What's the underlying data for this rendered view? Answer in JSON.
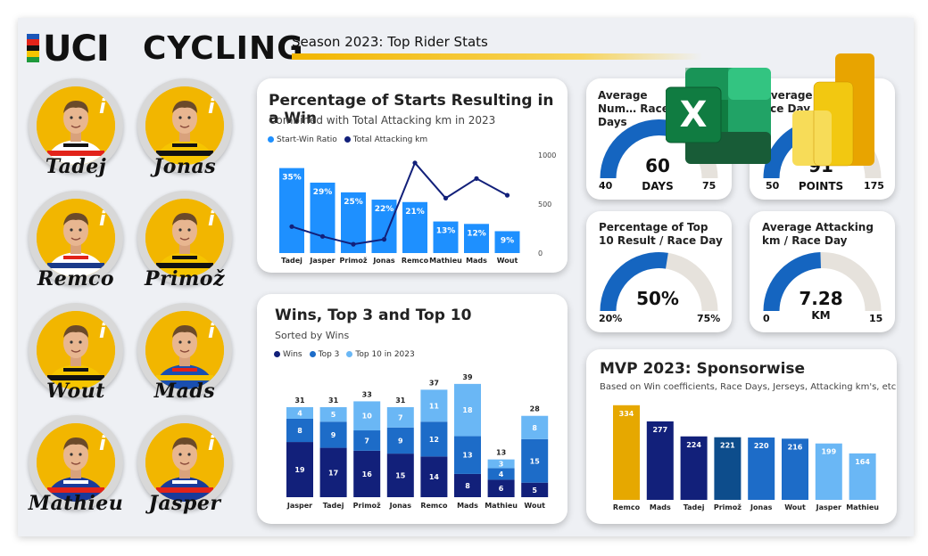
{
  "header": {
    "logo_uci": "UCI",
    "logo_cycling": "CYCLING",
    "season_title": "Season 2023: Top Rider Stats",
    "rainbow_colors": [
      "#1a56b8",
      "#e2231a",
      "#111111",
      "#f6c500",
      "#1f9a3c"
    ]
  },
  "riders": [
    {
      "name": "Tadej",
      "kit": "uae"
    },
    {
      "name": "Jonas",
      "kit": "jumbo"
    },
    {
      "name": "Remco",
      "kit": "soudal"
    },
    {
      "name": "Primož",
      "kit": "jumbo"
    },
    {
      "name": "Wout",
      "kit": "jumbo"
    },
    {
      "name": "Mads",
      "kit": "lidl"
    },
    {
      "name": "Mathieu",
      "kit": "alpecin"
    },
    {
      "name": "Jasper",
      "kit": "alpecin"
    }
  ],
  "card1": {
    "title": "Percentage of Starts Resulting in a Win",
    "subtitle": "Combined with Total Attacking km in 2023",
    "legend": [
      "Start-Win Ratio",
      "Total Attacking km"
    ]
  },
  "card2": {
    "title": "Wins, Top 3 and Top 10",
    "subtitle": "Sorted by Wins",
    "legend": [
      "Wins",
      "Top 3",
      "Top 10 in 2023"
    ]
  },
  "gauges": [
    {
      "title": "Average Number of Race Days",
      "title_visible": "Average Num… Race Days",
      "value": "60",
      "unit": "DAYS",
      "min": "40",
      "max": "75",
      "fill": 0.57
    },
    {
      "title": "Average Points / Race Day",
      "title_visible": "Average … ace Day",
      "value": "91",
      "unit": "POINTS",
      "min": "50",
      "max": "175",
      "fill": 0.33
    },
    {
      "title": "Percentage of Top 10 Result / Race Day",
      "value": "50%",
      "unit": "",
      "min": "20%",
      "max": "75%",
      "fill": 0.55
    },
    {
      "title": "Average Attacking km / Race Day",
      "value": "7.28",
      "unit": "KM",
      "min": "0",
      "max": "15",
      "fill": 0.49
    }
  ],
  "card_mvp": {
    "title": "MVP 2023: Sponsorwise",
    "subtitle": "Based on Win coefficients, Race Days, Jerseys, Attacking km's, etc"
  },
  "colors": {
    "primary_blue": "#1e90ff",
    "navy": "#12207a",
    "mid_blue": "#1d6cc8",
    "light_blue": "#6ab7f5",
    "gold": "#e6a800",
    "gauge_blue": "#1565c0",
    "gauge_track": "#e6e2dc"
  },
  "chart_data": [
    {
      "type": "bar",
      "title": "Percentage of Starts Resulting in a Win",
      "categories": [
        "Tadej",
        "Jasper",
        "Primož",
        "Jonas",
        "Remco",
        "Mathieu",
        "Mads",
        "Wout"
      ],
      "series": [
        {
          "name": "Start-Win Ratio",
          "type": "bar",
          "values": [
            35,
            29,
            25,
            22,
            21,
            13,
            12,
            9
          ],
          "labels": [
            "35%",
            "29%",
            "25%",
            "22%",
            "21%",
            "13%",
            "12%",
            "9%"
          ]
        },
        {
          "name": "Total Attacking km",
          "type": "line",
          "axis": "right",
          "values": [
            270,
            170,
            90,
            140,
            920,
            560,
            760,
            590
          ]
        }
      ],
      "y2_ticks": [
        "1000",
        "500",
        "0"
      ],
      "ylim": [
        0,
        40
      ],
      "y2lim": [
        0,
        1000
      ]
    },
    {
      "type": "bar",
      "stacked": true,
      "title": "Wins, Top 3 and Top 10",
      "categories": [
        "Jasper",
        "Tadej",
        "Primož",
        "Jonas",
        "Remco",
        "Mads",
        "Mathieu",
        "Wout"
      ],
      "series": [
        {
          "name": "Wins",
          "values": [
            19,
            17,
            16,
            15,
            14,
            8,
            6,
            5
          ]
        },
        {
          "name": "Top 3",
          "values": [
            8,
            9,
            7,
            9,
            12,
            13,
            4,
            15
          ]
        },
        {
          "name": "Top 10 in 2023",
          "values": [
            4,
            5,
            10,
            7,
            11,
            18,
            3,
            8
          ]
        }
      ],
      "totals": [
        31,
        31,
        33,
        31,
        37,
        39,
        13,
        28
      ],
      "ylim": [
        0,
        40
      ]
    },
    {
      "type": "bar",
      "title": "MVP 2023: Sponsorwise",
      "categories": [
        "Remco",
        "Mads",
        "Tadej",
        "Primož",
        "Jonas",
        "Wout",
        "Jasper",
        "Mathieu"
      ],
      "values": [
        334,
        277,
        224,
        221,
        220,
        216,
        199,
        164
      ],
      "bar_colors": [
        "#e6a800",
        "#12207a",
        "#12207a",
        "#0d4d8c",
        "#1d6cc8",
        "#1d6cc8",
        "#6ab7f5",
        "#6ab7f5"
      ],
      "ylim": [
        0,
        350
      ]
    }
  ]
}
